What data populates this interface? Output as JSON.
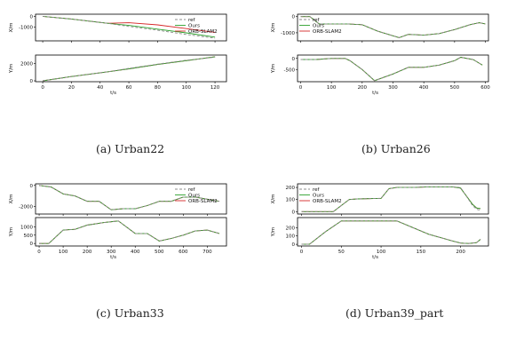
{
  "colors": {
    "ref": "#8c8c8c",
    "ours": "#2ca02c",
    "orb": "#d62728",
    "axis": "#000000"
  },
  "captions": [
    "(a) Urban22",
    "(b) Urban26",
    "(c) Urban33",
    "(d) Urban39_part"
  ],
  "chart_data": [
    {
      "type": "line",
      "caption": "(a) Urban22",
      "legend": {
        "placement": "top-right",
        "entries": [
          "ref",
          "Ours",
          "ORB-SLAM2"
        ]
      },
      "xlabel": "t/s",
      "xlim": [
        -5,
        128
      ],
      "xticks": [
        0,
        20,
        40,
        60,
        80,
        100,
        120
      ],
      "subplots": [
        {
          "ylabel": "X/m",
          "ylim": [
            -2300,
            200
          ],
          "yticks": [
            0,
            -1000
          ],
          "series": [
            {
              "name": "ref",
              "x": [
                0,
                20,
                45,
                60,
                80,
                100,
                120
              ],
              "y": [
                0,
                -250,
                -650,
                -950,
                -1300,
                -1700,
                -2050
              ]
            },
            {
              "name": "Ours",
              "x": [
                0,
                20,
                45,
                60,
                80,
                100,
                120
              ],
              "y": [
                0,
                -250,
                -650,
                -850,
                -1200,
                -1550,
                -1950
              ]
            },
            {
              "name": "ORB-SLAM2",
              "x": [
                0,
                20,
                45,
                60,
                80,
                100,
                120
              ],
              "y": [
                0,
                -250,
                -650,
                -600,
                -800,
                -1150,
                -1500
              ]
            }
          ]
        },
        {
          "ylabel": "Y/m",
          "ylim": [
            -100,
            3000
          ],
          "yticks": [
            0,
            2000
          ],
          "series": [
            {
              "name": "ref",
              "x": [
                0,
                20,
                45,
                60,
                80,
                100,
                120
              ],
              "y": [
                0,
                500,
                1050,
                1450,
                1950,
                2400,
                2750
              ]
            },
            {
              "name": "Ours",
              "x": [
                0,
                20,
                45,
                60,
                80,
                100,
                120
              ],
              "y": [
                0,
                500,
                1050,
                1400,
                1900,
                2350,
                2800
              ]
            },
            {
              "name": "ORB-SLAM2",
              "x": [
                0,
                20,
                45,
                60,
                80,
                100,
                120
              ],
              "y": [
                0,
                500,
                1050,
                1400,
                1900,
                2350,
                2800
              ]
            }
          ]
        }
      ]
    },
    {
      "type": "line",
      "caption": "(b) Urban26",
      "legend": {
        "placement": "top-left",
        "entries": [
          "ref",
          "Ours",
          "ORB-SLAM2"
        ]
      },
      "xlabel": "t/s",
      "xlim": [
        -10,
        610
      ],
      "xticks": [
        0,
        100,
        200,
        300,
        400,
        500,
        600
      ],
      "subplots": [
        {
          "ylabel": "X/m",
          "ylim": [
            -1500,
            150
          ],
          "yticks": [
            0,
            -1000
          ],
          "series": [
            {
              "name": "ref",
              "x": [
                0,
                30,
                60,
                150,
                200,
                250,
                320,
                350,
                400,
                450,
                500,
                550,
                580,
                600
              ],
              "y": [
                0,
                0,
                -450,
                -450,
                -500,
                -900,
                -1300,
                -1100,
                -1150,
                -1050,
                -800,
                -500,
                -380,
                -450
              ]
            },
            {
              "name": "Ours",
              "x": [
                0,
                30,
                60,
                150,
                200,
                250,
                320,
                350,
                400,
                450,
                500,
                550,
                580,
                600
              ],
              "y": [
                0,
                0,
                -450,
                -450,
                -500,
                -900,
                -1300,
                -1100,
                -1150,
                -1050,
                -800,
                -500,
                -380,
                -450
              ]
            },
            {
              "name": "ORB-SLAM2",
              "x": [
                0,
                30,
                60,
                150,
                200,
                250,
                320,
                350,
                400,
                450,
                500,
                550,
                580,
                600
              ],
              "y": [
                0,
                0,
                -450,
                -450,
                -500,
                -900,
                -1300,
                -1100,
                -1150,
                -1050,
                -800,
                -500,
                -380,
                -450
              ]
            }
          ]
        },
        {
          "ylabel": "Y/m",
          "ylim": [
            -1050,
            150
          ],
          "yticks": [
            0,
            -500
          ],
          "series": [
            {
              "name": "ref",
              "x": [
                0,
                50,
                100,
                145,
                160,
                200,
                240,
                300,
                350,
                400,
                450,
                500,
                520,
                560,
                590
              ],
              "y": [
                -50,
                -50,
                0,
                0,
                -100,
                -500,
                -1000,
                -700,
                -400,
                -400,
                -300,
                -100,
                50,
                -50,
                -300
              ]
            },
            {
              "name": "Ours",
              "x": [
                0,
                50,
                100,
                145,
                160,
                200,
                240,
                300,
                350,
                400,
                450,
                500,
                520,
                560,
                590
              ],
              "y": [
                -50,
                -50,
                0,
                0,
                -100,
                -500,
                -1000,
                -700,
                -400,
                -400,
                -300,
                -100,
                50,
                -50,
                -300
              ]
            },
            {
              "name": "ORB-SLAM2",
              "x": [
                0,
                50,
                100,
                145,
                160,
                200,
                240,
                300,
                350,
                400,
                450,
                500,
                520,
                560,
                590
              ],
              "y": [
                -50,
                -50,
                0,
                0,
                -100,
                -500,
                -1000,
                -700,
                -400,
                -400,
                -300,
                -100,
                50,
                -50,
                -300
              ]
            }
          ]
        }
      ]
    },
    {
      "type": "line",
      "caption": "(c) Urban33",
      "legend": {
        "placement": "top-right",
        "entries": [
          "ref",
          "Ours",
          "ORB-SLAM2"
        ]
      },
      "xlabel": "t/s",
      "xlim": [
        -15,
        780
      ],
      "xticks": [
        0,
        100,
        200,
        300,
        400,
        500,
        600,
        700
      ],
      "subplots": [
        {
          "ylabel": "X/m",
          "ylim": [
            -2700,
            150
          ],
          "yticks": [
            0,
            -2000
          ],
          "series": [
            {
              "name": "ref",
              "x": [
                0,
                50,
                100,
                150,
                200,
                250,
                300,
                350,
                400,
                450,
                500,
                550,
                600,
                650,
                700,
                750
              ],
              "y": [
                0,
                -150,
                -800,
                -1000,
                -1500,
                -1500,
                -2300,
                -2200,
                -2200,
                -1900,
                -1500,
                -1500,
                -1100,
                -1100,
                -1300,
                -1500
              ]
            },
            {
              "name": "Ours",
              "x": [
                0,
                50,
                100,
                150,
                200,
                250,
                300,
                350,
                400,
                450,
                500,
                550,
                600,
                650,
                700,
                750
              ],
              "y": [
                0,
                -150,
                -800,
                -1000,
                -1500,
                -1500,
                -2300,
                -2200,
                -2200,
                -1900,
                -1500,
                -1500,
                -1100,
                -1100,
                -1300,
                -1500
              ]
            },
            {
              "name": "ORB-SLAM2",
              "x": [
                0,
                50,
                100,
                150,
                200,
                250,
                300,
                350,
                400,
                450,
                500,
                550,
                600,
                650,
                700,
                750
              ],
              "y": [
                0,
                -150,
                -800,
                -1000,
                -1500,
                -1500,
                -2300,
                -2200,
                -2200,
                -1900,
                -1500,
                -1500,
                -1100,
                -1100,
                -1300,
                -1500
              ]
            }
          ]
        },
        {
          "ylabel": "Y/m",
          "ylim": [
            -150,
            1550
          ],
          "yticks": [
            0,
            500,
            1000
          ],
          "series": [
            {
              "name": "ref",
              "x": [
                0,
                40,
                100,
                150,
                200,
                270,
                330,
                400,
                450,
                500,
                550,
                600,
                650,
                700,
                750
              ],
              "y": [
                0,
                0,
                800,
                850,
                1100,
                1250,
                1350,
                600,
                600,
                150,
                300,
                500,
                750,
                800,
                600
              ]
            },
            {
              "name": "Ours",
              "x": [
                0,
                40,
                100,
                150,
                200,
                270,
                330,
                400,
                450,
                500,
                550,
                600,
                650,
                700,
                750
              ],
              "y": [
                0,
                0,
                800,
                850,
                1100,
                1250,
                1350,
                600,
                600,
                150,
                300,
                500,
                750,
                800,
                600
              ]
            },
            {
              "name": "ORB-SLAM2",
              "x": [
                0,
                40,
                100,
                150,
                200,
                270,
                330,
                400,
                450,
                500,
                550,
                600,
                650,
                700,
                750
              ],
              "y": [
                0,
                0,
                800,
                850,
                1100,
                1250,
                1350,
                600,
                600,
                150,
                300,
                500,
                750,
                800,
                600
              ]
            }
          ]
        }
      ]
    },
    {
      "type": "line",
      "caption": "(d) Urban39_part",
      "legend": {
        "placement": "top-left",
        "entries": [
          "ref",
          "Ours",
          "ORB-SLAM2"
        ]
      },
      "xlabel": "t/s",
      "xlim": [
        -5,
        235
      ],
      "xticks": [
        0,
        50,
        100,
        150,
        200
      ],
      "subplots": [
        {
          "ylabel": "X/m",
          "ylim": [
            -20,
            230
          ],
          "yticks": [
            0,
            100,
            200
          ],
          "series": [
            {
              "name": "ref",
              "x": [
                0,
                20,
                40,
                60,
                70,
                100,
                110,
                120,
                140,
                160,
                190,
                200,
                215,
                220,
                225
              ],
              "y": [
                0,
                0,
                0,
                100,
                105,
                110,
                190,
                200,
                200,
                205,
                205,
                200,
                50,
                20,
                10
              ]
            },
            {
              "name": "Ours",
              "x": [
                0,
                20,
                40,
                60,
                70,
                100,
                110,
                120,
                140,
                160,
                190,
                200,
                215,
                220,
                225
              ],
              "y": [
                0,
                0,
                0,
                100,
                105,
                110,
                190,
                200,
                200,
                205,
                205,
                195,
                60,
                30,
                25
              ]
            },
            {
              "name": "ORB-SLAM2",
              "x": [
                0,
                20,
                40,
                60,
                70,
                100,
                110,
                120,
                140,
                160,
                190,
                200,
                215,
                220,
                225
              ],
              "y": [
                0,
                0,
                0,
                100,
                105,
                110,
                190,
                200,
                200,
                205,
                205,
                195,
                60,
                30,
                25
              ]
            }
          ]
        },
        {
          "ylabel": "Y/m",
          "ylim": [
            -20,
            320
          ],
          "yticks": [
            0,
            100,
            200
          ],
          "series": [
            {
              "name": "ref",
              "x": [
                0,
                10,
                30,
                50,
                60,
                100,
                120,
                140,
                160,
                190,
                200,
                210,
                220,
                225
              ],
              "y": [
                0,
                0,
                150,
                280,
                280,
                280,
                280,
                200,
                120,
                40,
                15,
                10,
                20,
                60
              ]
            },
            {
              "name": "Ours",
              "x": [
                0,
                10,
                30,
                50,
                60,
                100,
                120,
                140,
                160,
                190,
                200,
                210,
                220,
                225
              ],
              "y": [
                0,
                0,
                150,
                280,
                280,
                280,
                280,
                200,
                120,
                40,
                15,
                10,
                20,
                60
              ]
            },
            {
              "name": "ORB-SLAM2",
              "x": [
                0,
                10,
                30,
                50,
                60,
                100,
                120,
                140,
                160,
                190,
                200,
                210,
                220,
                225
              ],
              "y": [
                0,
                0,
                150,
                280,
                280,
                280,
                280,
                200,
                120,
                40,
                15,
                10,
                20,
                60
              ]
            }
          ]
        }
      ]
    }
  ]
}
